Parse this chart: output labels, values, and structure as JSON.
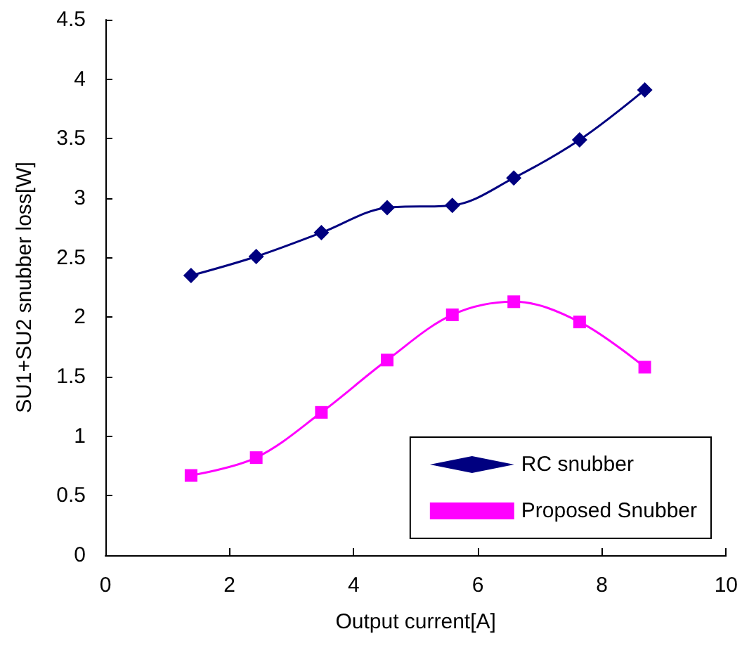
{
  "chart_data": {
    "type": "line",
    "xlabel": "Output current[A]",
    "ylabel": "SU1+SU2 snubber loss[W]",
    "x": [
      1.38,
      2.43,
      3.48,
      4.54,
      5.59,
      6.58,
      7.64,
      8.69
    ],
    "series": [
      {
        "name": "RC snubber",
        "color": "#000080",
        "marker": "diamond",
        "values": [
          2.35,
          2.51,
          2.71,
          2.92,
          2.94,
          3.17,
          3.49,
          3.91
        ]
      },
      {
        "name": "Proposed Snubber",
        "color": "#ff00ff",
        "marker": "square",
        "values": [
          0.67,
          0.82,
          1.2,
          1.64,
          2.02,
          2.13,
          1.96,
          1.58
        ]
      }
    ],
    "xlim": [
      0,
      10
    ],
    "xticks": [
      0,
      2,
      4,
      6,
      8,
      10
    ],
    "ylim": [
      0,
      4.5
    ],
    "yticks": [
      0,
      0.5,
      1,
      1.5,
      2,
      2.5,
      3,
      3.5,
      4,
      4.5
    ],
    "grid": false,
    "legend": "bottom right",
    "line_style": "solid"
  }
}
